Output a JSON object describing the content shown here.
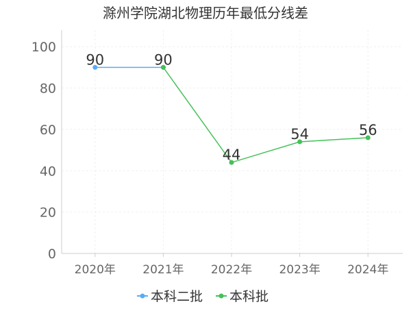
{
  "chart_data": {
    "type": "line",
    "title": "滁州学院湖北物理历年最低分线差",
    "categories": [
      "2020年",
      "2021年",
      "2022年",
      "2023年",
      "2024年"
    ],
    "yticks": [
      "0",
      "20",
      "40",
      "60",
      "80",
      "100"
    ],
    "ylim": [
      0,
      108
    ],
    "grid": true,
    "legend_position": "bottom",
    "series": [
      {
        "name": "本科二批",
        "color": "#5aabf5",
        "values": [
          90,
          90,
          null,
          null,
          null
        ],
        "labels": [
          null,
          null,
          null,
          null,
          null
        ]
      },
      {
        "name": "本科批",
        "color": "#44c157",
        "values": [
          null,
          90,
          44,
          54,
          56
        ],
        "labels": [
          null,
          null,
          null,
          null,
          null
        ]
      }
    ],
    "point_labels": [
      "90",
      "90",
      "44",
      "54",
      "56"
    ],
    "point_label_values": [
      90,
      90,
      44,
      54,
      56
    ]
  }
}
